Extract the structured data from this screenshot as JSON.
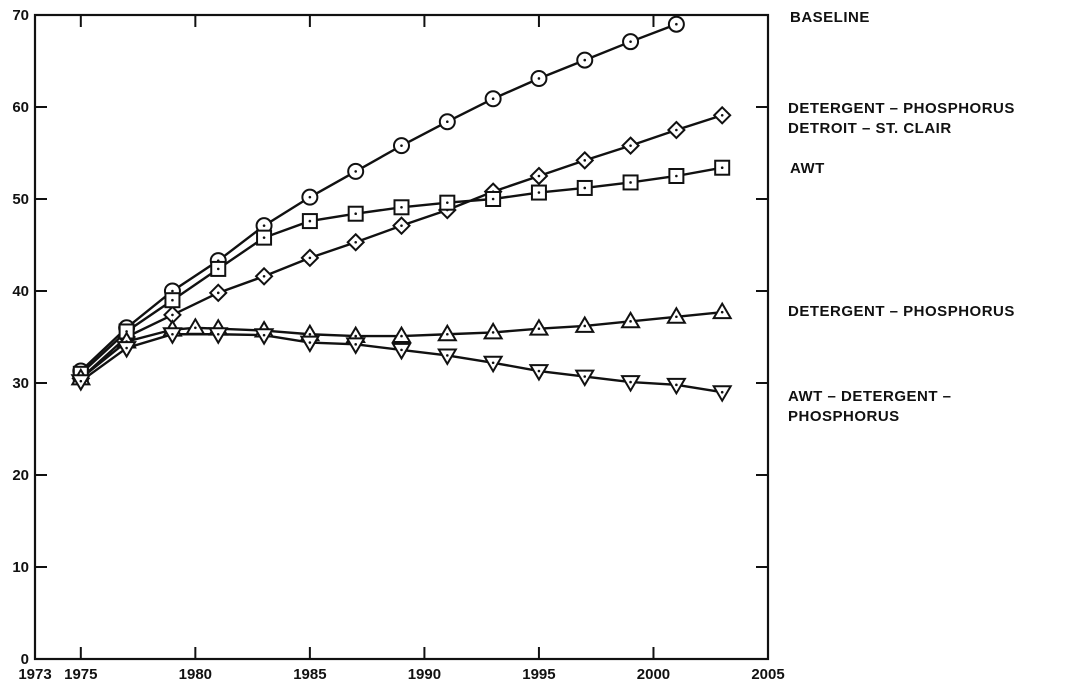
{
  "chart_data": {
    "type": "line",
    "title": "",
    "xlabel": "",
    "ylabel": "",
    "xlim": [
      1973,
      2005
    ],
    "ylim": [
      0,
      70
    ],
    "x_ticks": [
      1973,
      1975,
      1980,
      1985,
      1990,
      1995,
      2000,
      2005
    ],
    "x_tick_labels": [
      "1973",
      "1975",
      "1980",
      "1985",
      "1990",
      "1995",
      "2000",
      "2005"
    ],
    "y_ticks": [
      0,
      10,
      20,
      30,
      40,
      50,
      60,
      70
    ],
    "y_tick_labels": [
      "0",
      "10",
      "20",
      "30",
      "40",
      "50",
      "60",
      "70"
    ],
    "grid": false,
    "legend": "right-side labels",
    "series": [
      {
        "key": "baseline",
        "name": "BASELINE",
        "marker": "circle",
        "label_lines": [
          "BASELINE"
        ],
        "x": [
          1975,
          1977,
          1979,
          1981,
          1983,
          1985,
          1987,
          1989,
          1991,
          1993,
          1995,
          1997,
          1999,
          2001
        ],
        "y": [
          31.3,
          36.0,
          40.0,
          43.3,
          47.1,
          50.2,
          53.0,
          55.8,
          58.4,
          60.9,
          63.1,
          65.1,
          67.1,
          69.0
        ]
      },
      {
        "key": "detergent-detroit",
        "name": "DETERGENT – PHOSPHORUS DETROIT – ST. CLAIR",
        "marker": "diamond",
        "label_lines": [
          "DETERGENT  –  PHOSPHORUS",
          "DETROIT  –  ST. CLAIR"
        ],
        "x": [
          1975,
          1977,
          1979,
          1981,
          1983,
          1985,
          1987,
          1989,
          1991,
          1993,
          1995,
          1997,
          1999,
          2001,
          2003
        ],
        "y": [
          30.5,
          35.0,
          37.4,
          39.8,
          41.6,
          43.6,
          45.3,
          47.1,
          48.8,
          50.8,
          52.5,
          54.2,
          55.8,
          57.5,
          59.1
        ]
      },
      {
        "key": "awt",
        "name": "AWT",
        "marker": "square",
        "label_lines": [
          "AWT"
        ],
        "x": [
          1975,
          1977,
          1979,
          1981,
          1983,
          1985,
          1987,
          1989,
          1991,
          1993,
          1995,
          1997,
          1999,
          2001,
          2003
        ],
        "y": [
          31.0,
          35.6,
          39.0,
          42.4,
          45.8,
          47.6,
          48.4,
          49.1,
          49.6,
          50.0,
          50.7,
          51.2,
          51.8,
          52.5,
          53.4
        ]
      },
      {
        "key": "detergent",
        "name": "DETERGENT – PHOSPHORUS",
        "marker": "triangle-up",
        "label_lines": [
          "DETERGENT  –  PHOSPHORUS"
        ],
        "x": [
          1975,
          1977,
          1979,
          1980,
          1981,
          1983,
          1985,
          1987,
          1989,
          1991,
          1993,
          1995,
          1997,
          1999,
          2001,
          2003
        ],
        "y": [
          30.5,
          34.5,
          35.8,
          36.0,
          35.9,
          35.7,
          35.3,
          35.1,
          35.1,
          35.3,
          35.5,
          35.9,
          36.2,
          36.7,
          37.2,
          37.7
        ]
      },
      {
        "key": "awt-detergent",
        "name": "AWT – DETERGENT – PHOSPHORUS",
        "marker": "triangle-down",
        "label_lines": [
          "AWT  –  DETERGENT  –",
          "PHOSPHORUS"
        ],
        "x": [
          1975,
          1977,
          1979,
          1981,
          1983,
          1985,
          1987,
          1989,
          1991,
          1993,
          1995,
          1997,
          1999,
          2001,
          2003
        ],
        "y": [
          30.2,
          33.8,
          35.3,
          35.3,
          35.2,
          34.4,
          34.2,
          33.6,
          33.0,
          32.2,
          31.3,
          30.7,
          30.1,
          29.8,
          29.0
        ]
      }
    ]
  }
}
